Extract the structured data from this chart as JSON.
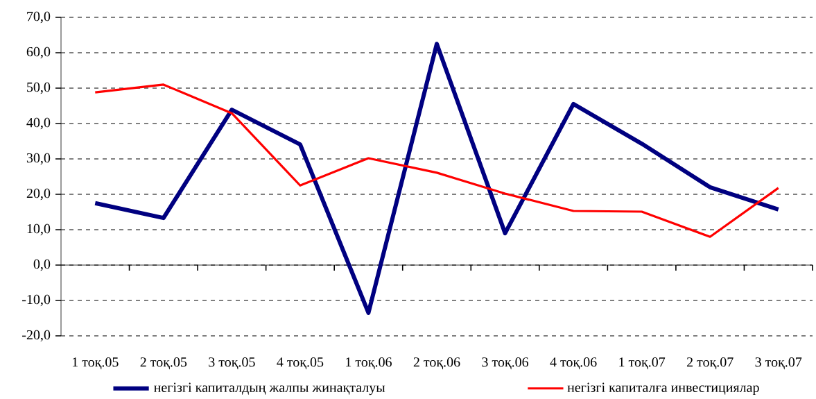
{
  "chart_data": {
    "type": "line",
    "categories": [
      "1 тоқ.05",
      "2 тоқ.05",
      "3 тоқ.05",
      "4 тоқ.05",
      "1 тоқ.06",
      "2 тоқ.06",
      "3 тоқ.06",
      "4 тоқ.06",
      "1 тоқ.07",
      "2 тоқ.07",
      "3 тоқ.07"
    ],
    "series": [
      {
        "name": "негізгі капиталдың жалпы жинақталуы",
        "color": "#000080",
        "values": [
          17.5,
          13.3,
          43.9,
          34.1,
          -13.5,
          62.5,
          9.0,
          45.5,
          34.3,
          22.0,
          15.7
        ]
      },
      {
        "name": "негізгі капиталға инвестициялар",
        "color": "#ff0000",
        "values": [
          48.8,
          51.0,
          42.9,
          22.5,
          30.2,
          26.1,
          20.2,
          15.3,
          15.1,
          8.0,
          21.8
        ]
      }
    ],
    "ylim": [
      -20,
      70
    ],
    "yticks": [
      {
        "value": -20,
        "label": "-20,0"
      },
      {
        "value": -10,
        "label": "-10,0"
      },
      {
        "value": 0,
        "label": "0,0"
      },
      {
        "value": 10,
        "label": "10,0"
      },
      {
        "value": 20,
        "label": "20,0"
      },
      {
        "value": 30,
        "label": "30,0"
      },
      {
        "value": 40,
        "label": "40,0"
      },
      {
        "value": 50,
        "label": "50,0"
      },
      {
        "value": 60,
        "label": "60,0"
      },
      {
        "value": 70,
        "label": "70,0"
      }
    ],
    "grid": "y",
    "legend": "bottom",
    "marker": "none",
    "line_style": "solid"
  }
}
